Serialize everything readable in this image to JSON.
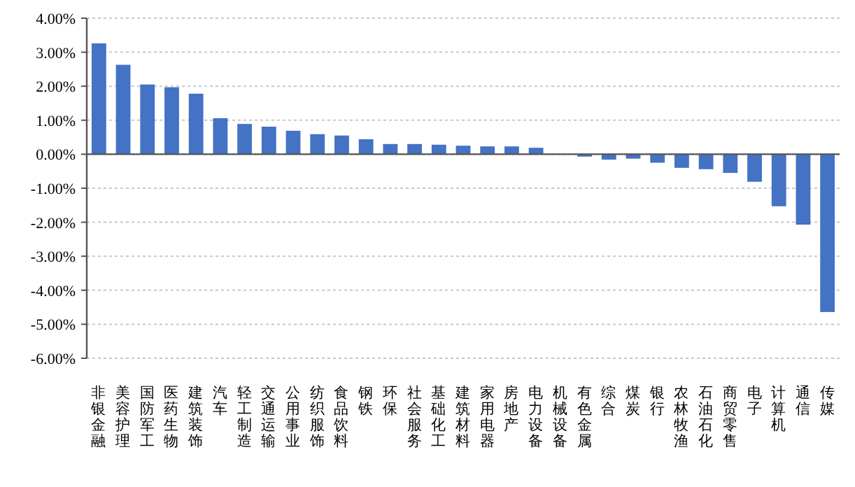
{
  "chart_data": {
    "type": "bar",
    "categories": [
      "非银金融",
      "美容护理",
      "国防军工",
      "医药生物",
      "建筑装饰",
      "汽车",
      "轻工制造",
      "交通运输",
      "公用事业",
      "纺织服饰",
      "食品饮料",
      "钢铁",
      "环保",
      "社会服务",
      "基础化工",
      "建筑材料",
      "家用电器",
      "房地产",
      "电力设备",
      "机械设备",
      "有色金属",
      "综合",
      "煤炭",
      "银行",
      "农林牧渔",
      "石油石化",
      "商贸零售",
      "电子",
      "计算机",
      "通信",
      "传媒"
    ],
    "values": [
      3.26,
      2.63,
      2.05,
      1.97,
      1.78,
      1.06,
      0.89,
      0.81,
      0.69,
      0.59,
      0.55,
      0.44,
      0.3,
      0.3,
      0.28,
      0.25,
      0.23,
      0.23,
      0.19,
      0.0,
      -0.07,
      -0.16,
      -0.13,
      -0.25,
      -0.4,
      -0.44,
      -0.55,
      -0.81,
      -1.53,
      -2.07,
      -4.64
    ],
    "color": "#4472c4",
    "ylim": [
      -6,
      4
    ],
    "yticks": [
      {
        "value": -6,
        "label": "-6.00%"
      },
      {
        "value": -5,
        "label": "-5.00%"
      },
      {
        "value": -4,
        "label": "-4.00%"
      },
      {
        "value": -3,
        "label": "-3.00%"
      },
      {
        "value": -2,
        "label": "-2.00%"
      },
      {
        "value": -1,
        "label": "-1.00%"
      },
      {
        "value": 0,
        "label": "0.00%"
      },
      {
        "value": 1,
        "label": "1.00%"
      },
      {
        "value": 2,
        "label": "2.00%"
      },
      {
        "value": 3,
        "label": "3.00%"
      },
      {
        "value": 4,
        "label": "4.00%"
      }
    ],
    "grid": "y"
  }
}
